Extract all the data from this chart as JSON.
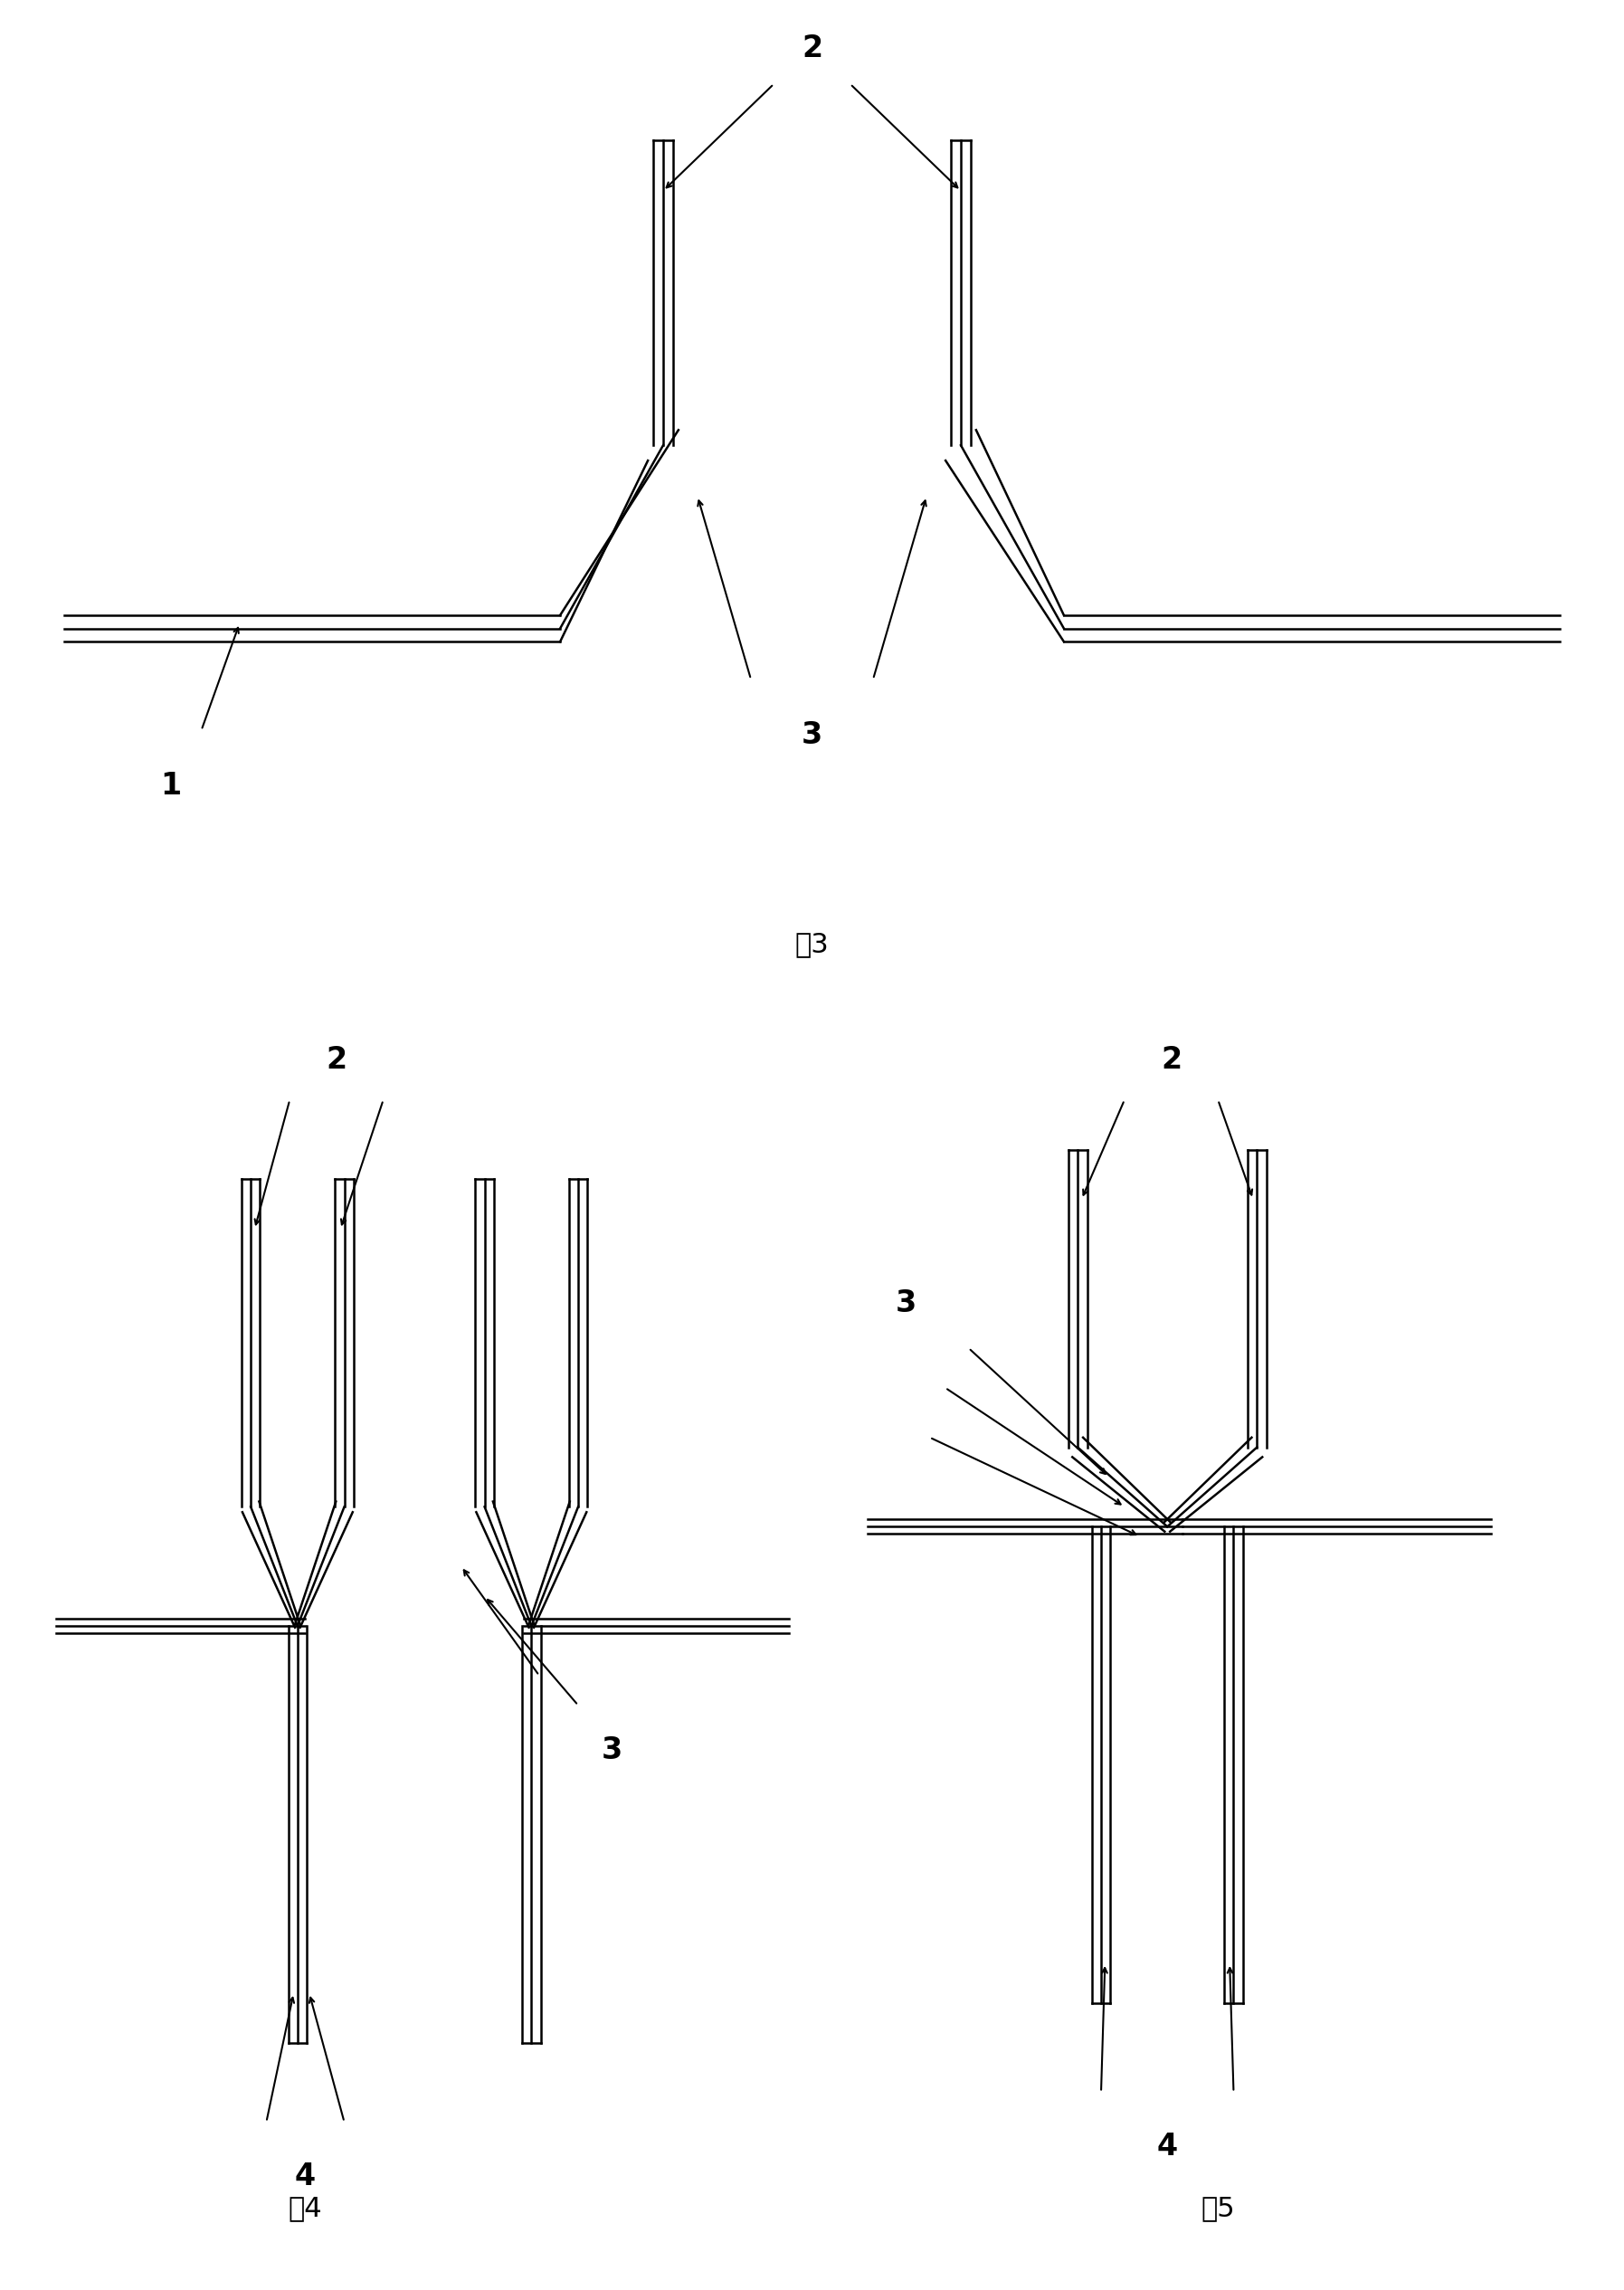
{
  "bg_color": "#ffffff",
  "line_color": "#000000",
  "line_width": 1.8,
  "fig3_caption": "图3",
  "fig4_caption": "图4",
  "fig5_caption": "图5",
  "label_fontsize": 20,
  "caption_fontsize": 20
}
